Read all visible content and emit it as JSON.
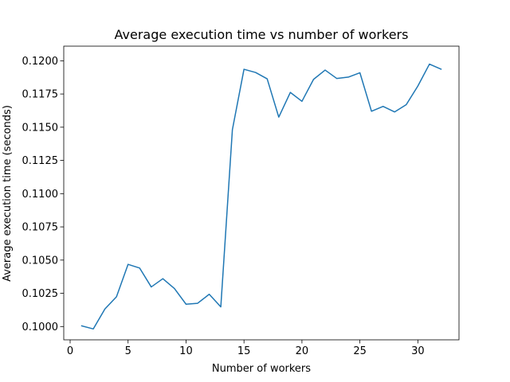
{
  "chart_data": {
    "type": "line",
    "title": "Average execution time vs number of workers",
    "xlabel": "Number of workers",
    "ylabel": "Average execution time (seconds)",
    "xlim": [
      -0.55,
      33.55
    ],
    "ylim": [
      0.099,
      0.1211
    ],
    "xticks": [
      0,
      5,
      10,
      15,
      20,
      25,
      30
    ],
    "yticks": [
      0.1,
      0.1025,
      0.105,
      0.1075,
      0.11,
      0.1125,
      0.115,
      0.1175,
      0.12
    ],
    "ytick_labels": [
      "0.1000",
      "0.1025",
      "0.1050",
      "0.1075",
      "0.1100",
      "0.1125",
      "0.1150",
      "0.1175",
      "0.1200"
    ],
    "grid": false,
    "series": [
      {
        "color": "#1f77b4",
        "x": [
          1,
          2,
          3,
          4,
          5,
          6,
          7,
          8,
          9,
          10,
          11,
          12,
          13,
          14,
          15,
          16,
          17,
          18,
          19,
          20,
          21,
          22,
          23,
          24,
          25,
          26,
          27,
          28,
          29,
          30,
          31,
          32
        ],
        "y": [
          0.10005,
          0.09982,
          0.10132,
          0.10224,
          0.10468,
          0.1044,
          0.10298,
          0.1036,
          0.10286,
          0.10168,
          0.10175,
          0.10243,
          0.10148,
          0.11482,
          0.11936,
          0.11912,
          0.11864,
          0.11576,
          0.11762,
          0.11695,
          0.1186,
          0.1193,
          0.11867,
          0.11877,
          0.1191,
          0.1162,
          0.11657,
          0.11615,
          0.1167,
          0.1181,
          0.11975,
          0.11937
        ]
      }
    ]
  }
}
